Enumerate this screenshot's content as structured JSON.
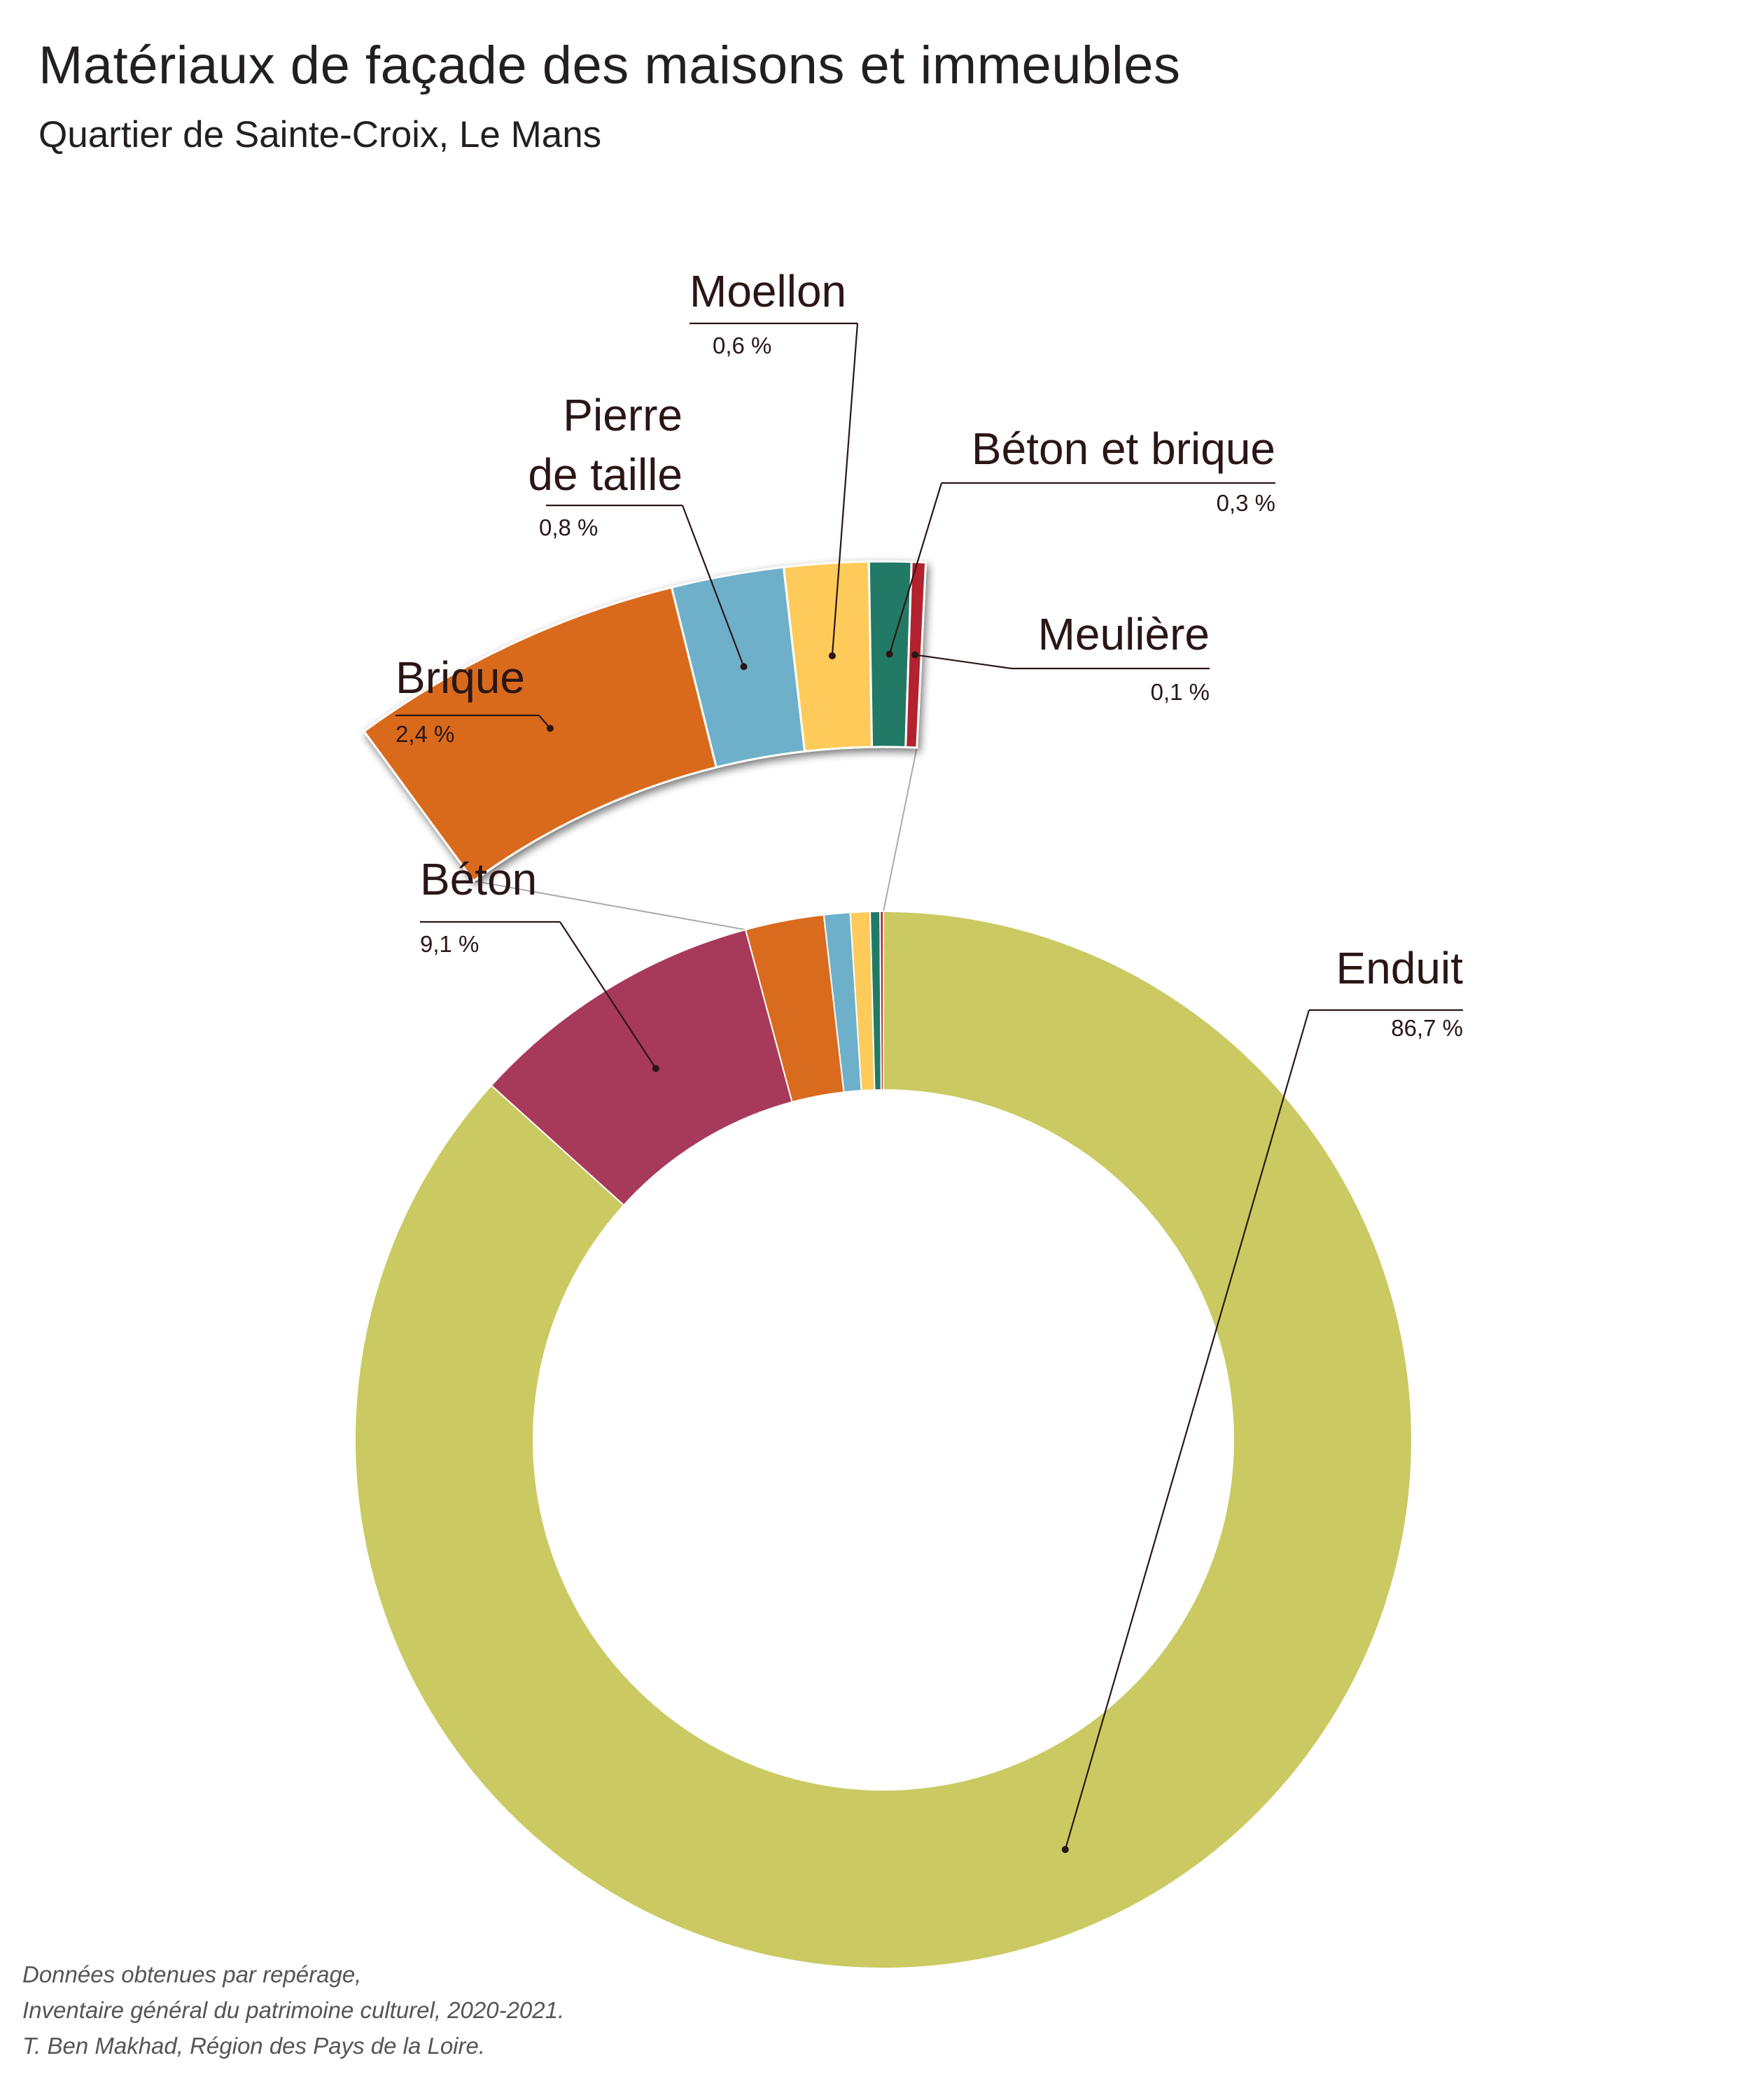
{
  "title": "Matériaux de façade des maisons et immeubles",
  "subtitle": "Quartier de Sainte-Croix, Le Mans",
  "footer": {
    "line1": "Données obtenues par repérage,",
    "line2": "Inventaire général du patrimoine culturel, 2020-2021.",
    "line3": "T. Ben Makhad, Région des Pays de la Loire."
  },
  "chart_data": {
    "type": "pie",
    "style": "donut with exploded detail of the smaller categories",
    "slices": [
      {
        "label": "Enduit",
        "value": 86.7,
        "value_label": "86,7 %",
        "color": "#cbc962"
      },
      {
        "label": "Béton",
        "value": 9.1,
        "value_label": "9,1 %",
        "color": "#a73a5a"
      },
      {
        "label": "Brique",
        "value": 2.4,
        "value_label": "2,4 %",
        "color": "#d96b1e"
      },
      {
        "label": "Pierre de taille",
        "value": 0.8,
        "value_label": "0,8 %",
        "color": "#6eb0c9"
      },
      {
        "label": "Moellon",
        "value": 0.6,
        "value_label": "0,6 %",
        "color": "#fecb5a"
      },
      {
        "label": "Béton et brique",
        "value": 0.3,
        "value_label": "0,3 %",
        "color": "#217a66"
      },
      {
        "label": "Meulière",
        "value": 0.1,
        "value_label": "0,1 %",
        "color": "#b3222e"
      }
    ],
    "detail_categories": [
      "Brique",
      "Pierre de taille",
      "Moellon",
      "Béton et brique",
      "Meulière"
    ]
  }
}
